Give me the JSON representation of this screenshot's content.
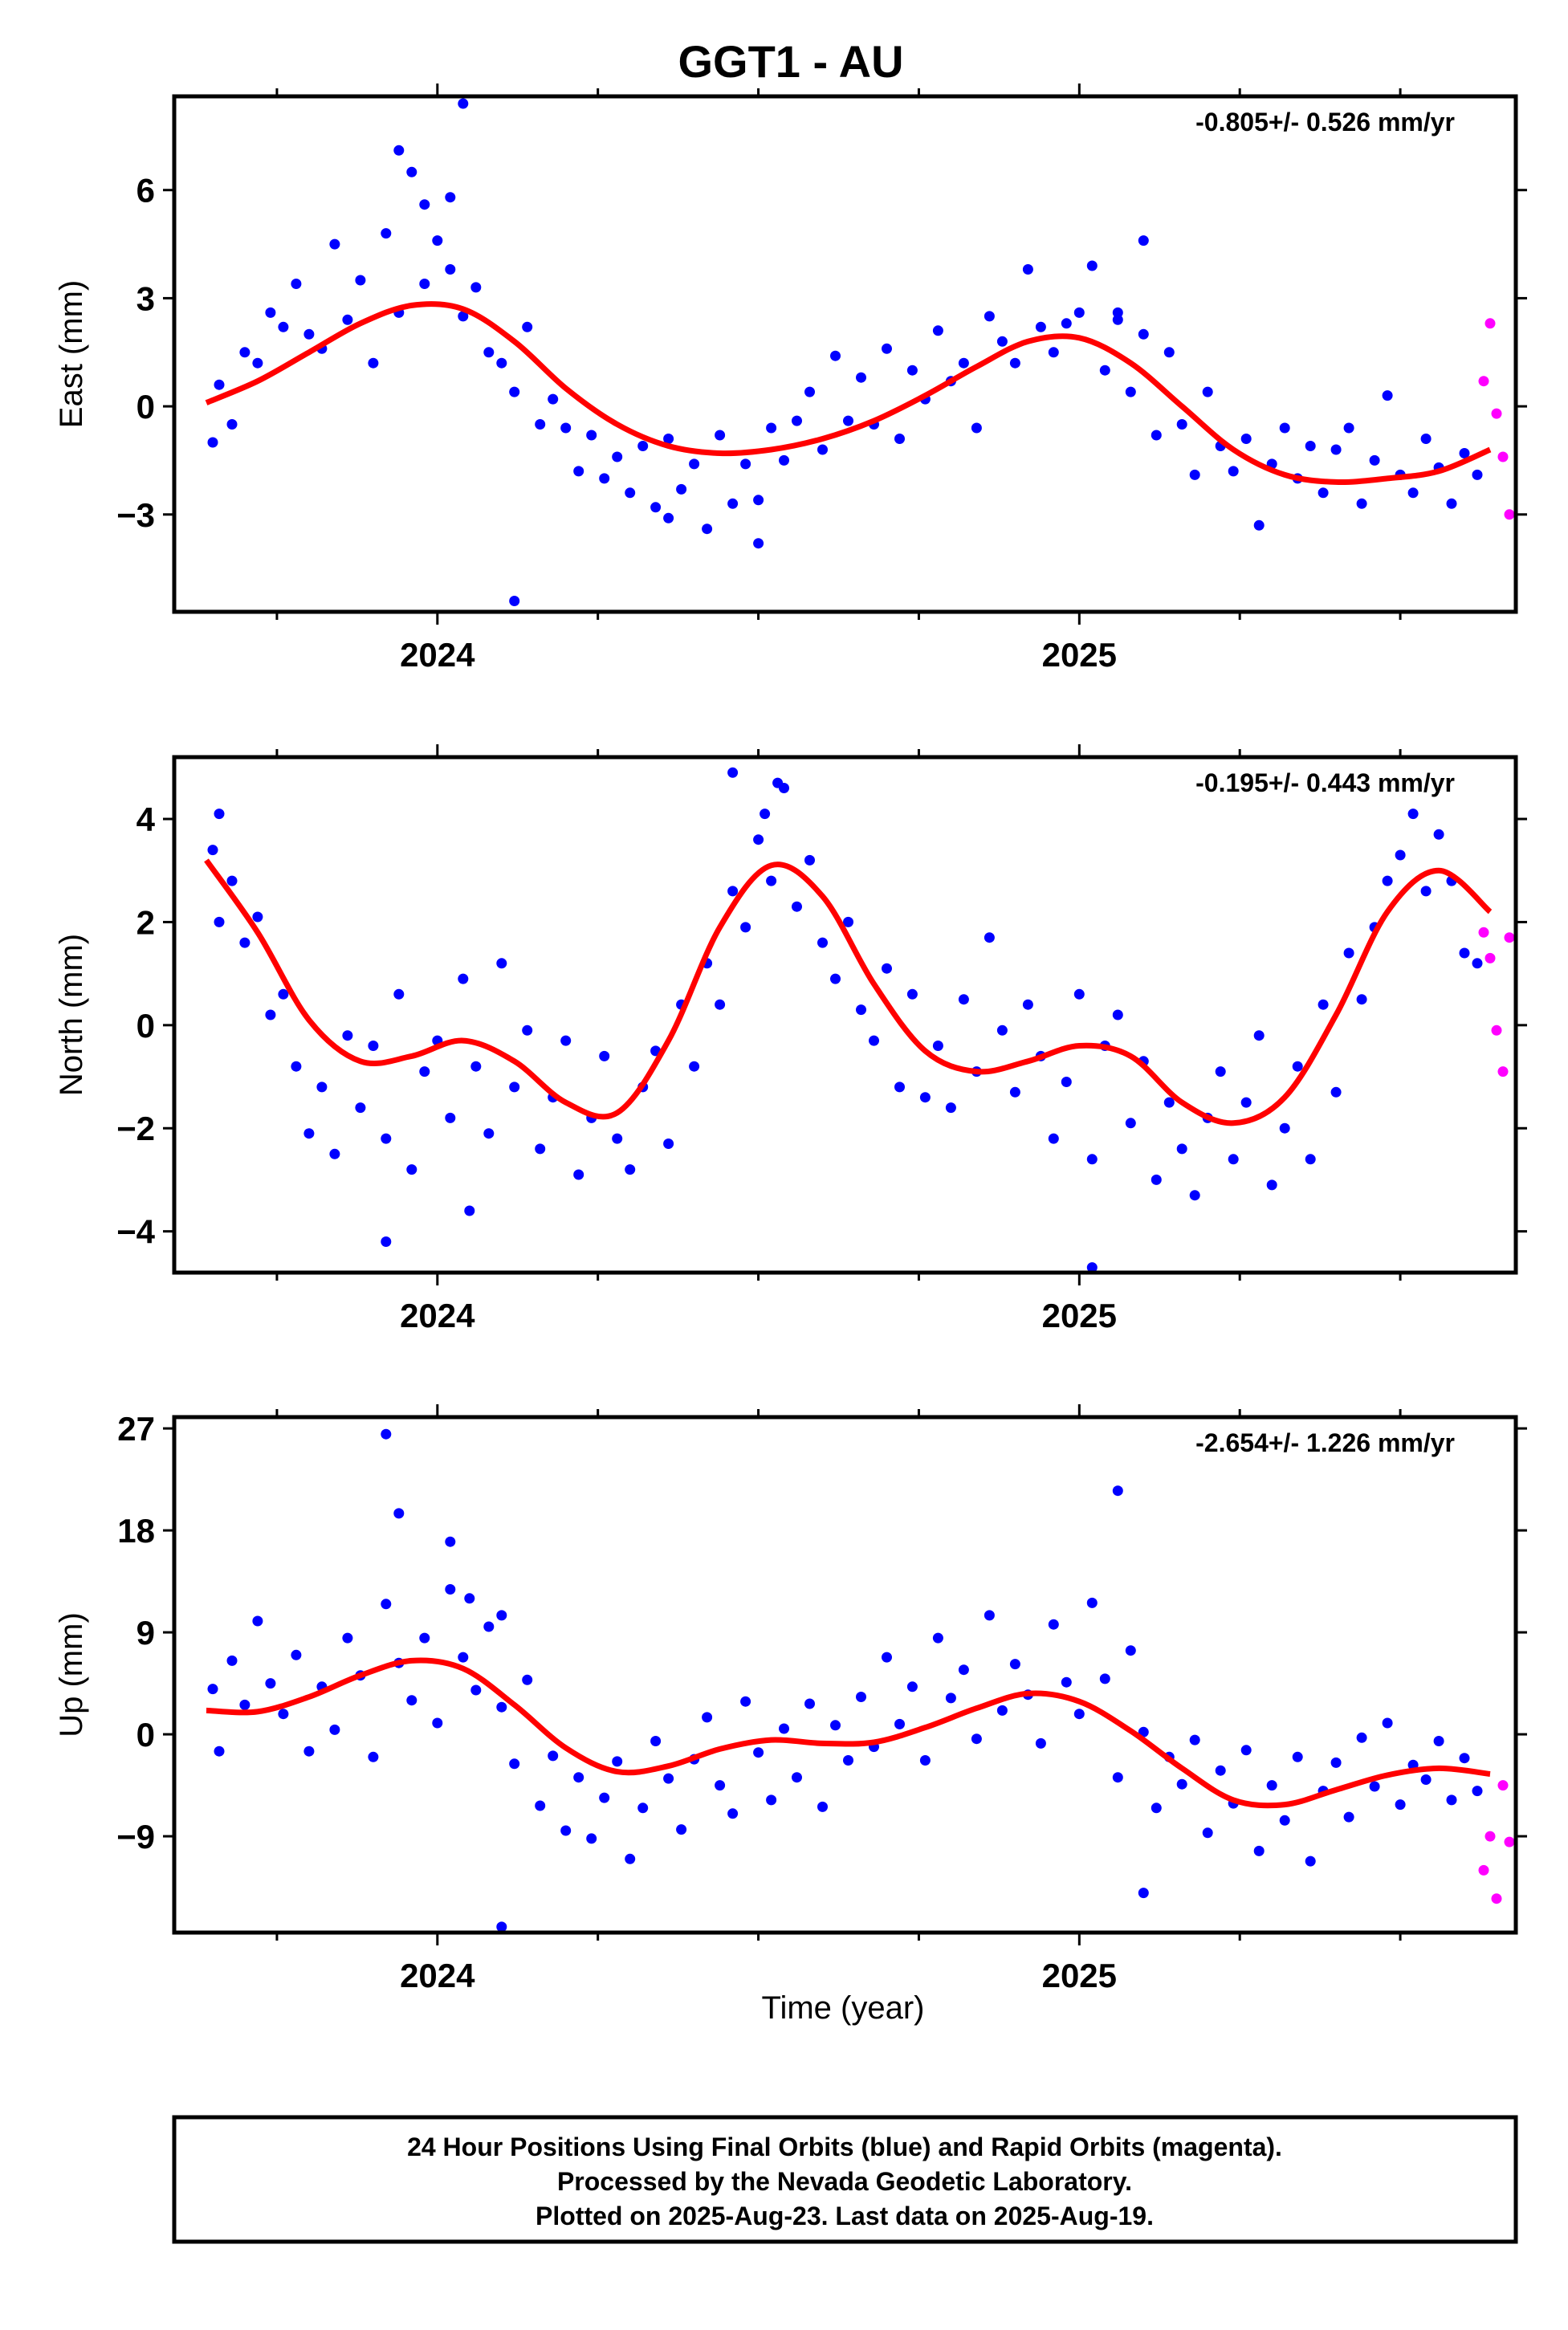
{
  "title": "GGT1 - AU",
  "footer": {
    "line1": "24 Hour Positions Using Final Orbits (blue) and Rapid Orbits (magenta).",
    "line2": "Processed by the Nevada Geodetic Laboratory.",
    "line3": "Plotted on 2025-Aug-23. Last data on 2025-Aug-19."
  },
  "colors": {
    "final": "#0000ff",
    "rapid": "#ff00ff",
    "fit": "#ff0000",
    "frame": "#000000"
  },
  "chart_data": [
    {
      "type": "scatter",
      "name": "east",
      "ylabel": "East (mm)",
      "xlabel": "",
      "rate": "-0.805+/- 0.526 mm/yr",
      "xlim": [
        2023.59,
        2025.68
      ],
      "ylim": [
        -5.7,
        8.6
      ],
      "yticks": [
        -3,
        0,
        3,
        6
      ],
      "ytick_labels": [
        "−3",
        "0",
        "3",
        "6"
      ],
      "xticks": [
        2024,
        2025
      ],
      "xtick_labels": [
        "2024",
        "2025"
      ],
      "fit_x": [
        2023.64,
        2023.72,
        2023.8,
        2023.88,
        2023.96,
        2024.04,
        2024.12,
        2024.2,
        2024.28,
        2024.36,
        2024.44,
        2024.52,
        2024.6,
        2024.68,
        2024.76,
        2024.84,
        2024.92,
        2025.0,
        2025.08,
        2025.16,
        2025.24,
        2025.32,
        2025.4,
        2025.48,
        2025.56,
        2025.64
      ],
      "fit_y": [
        0.1,
        0.7,
        1.5,
        2.3,
        2.8,
        2.7,
        1.8,
        0.5,
        -0.5,
        -1.1,
        -1.3,
        -1.2,
        -0.9,
        -0.4,
        0.3,
        1.1,
        1.8,
        1.9,
        1.2,
        0.0,
        -1.2,
        -1.9,
        -2.1,
        -2.0,
        -1.8,
        -1.2
      ],
      "final_x": [
        2023.65,
        2023.66,
        2023.68,
        2023.7,
        2023.72,
        2023.74,
        2023.76,
        2023.78,
        2023.8,
        2023.82,
        2023.84,
        2023.86,
        2023.88,
        2023.9,
        2023.92,
        2023.94,
        2023.96,
        2023.98,
        2024.0,
        2024.02,
        2024.04,
        2024.06,
        2024.08,
        2024.1,
        2024.12,
        2024.14,
        2024.16,
        2024.18,
        2024.2,
        2024.22,
        2024.24,
        2024.26,
        2024.28,
        2024.3,
        2024.32,
        2024.34,
        2024.36,
        2024.38,
        2024.4,
        2024.42,
        2024.44,
        2024.46,
        2024.48,
        2024.5,
        2024.52,
        2024.54,
        2024.56,
        2024.58,
        2024.6,
        2024.62,
        2024.64,
        2024.66,
        2024.68,
        2024.7,
        2024.72,
        2024.74,
        2024.76,
        2024.78,
        2024.8,
        2024.82,
        2024.84,
        2024.86,
        2024.88,
        2024.9,
        2024.92,
        2024.94,
        2024.96,
        2024.98,
        2025.0,
        2025.02,
        2025.04,
        2025.06,
        2025.08,
        2025.1,
        2025.12,
        2025.14,
        2025.16,
        2025.18,
        2025.2,
        2025.22,
        2025.24,
        2025.26,
        2025.28,
        2025.3,
        2025.32,
        2025.34,
        2025.36,
        2025.38,
        2025.4,
        2025.42,
        2025.44,
        2025.46,
        2025.48,
        2025.5,
        2025.52,
        2025.54,
        2025.56,
        2025.58,
        2025.6,
        2025.62,
        2023.94,
        2023.98,
        2024.02,
        2024.04,
        2025.06,
        2025.1,
        2024.12,
        2024.36,
        2024.5
      ],
      "final_y": [
        -1.0,
        0.6,
        -0.5,
        1.5,
        1.2,
        2.6,
        2.2,
        3.4,
        2.0,
        1.6,
        4.5,
        2.4,
        3.5,
        1.2,
        4.8,
        2.6,
        6.5,
        3.4,
        4.6,
        3.8,
        2.5,
        3.3,
        1.5,
        1.2,
        0.4,
        2.2,
        -0.5,
        0.2,
        -0.6,
        -1.8,
        -0.8,
        -2.0,
        -1.4,
        -2.4,
        -1.1,
        -2.8,
        -0.9,
        -2.3,
        -1.6,
        -3.4,
        -0.8,
        -2.7,
        -1.6,
        -3.8,
        -0.6,
        -1.5,
        -0.4,
        0.4,
        -1.2,
        1.4,
        -0.4,
        0.8,
        -0.5,
        1.6,
        -0.9,
        1.0,
        0.2,
        2.1,
        0.7,
        1.2,
        -0.6,
        2.5,
        1.8,
        1.2,
        3.8,
        2.2,
        1.5,
        2.3,
        2.6,
        3.9,
        1.0,
        2.4,
        0.4,
        2.0,
        -0.8,
        1.5,
        -0.5,
        -1.9,
        0.4,
        -1.1,
        -1.8,
        -0.9,
        -3.3,
        -1.6,
        -0.6,
        -2.0,
        -1.1,
        -2.4,
        -1.2,
        -0.6,
        -2.7,
        -1.5,
        0.3,
        -1.9,
        -2.4,
        -0.9,
        -1.7,
        -2.7,
        -1.3,
        -1.9,
        7.1,
        5.6,
        5.8,
        8.4,
        2.6,
        4.6,
        -5.4,
        -3.1,
        -2.6
      ],
      "rapid_x": [
        2025.63,
        2025.64,
        2025.65,
        2025.66,
        2025.67
      ],
      "rapid_y": [
        0.7,
        2.3,
        -0.2,
        -1.4,
        -3.0
      ]
    },
    {
      "type": "scatter",
      "name": "north",
      "ylabel": "North (mm)",
      "xlabel": "",
      "rate": "-0.195+/- 0.443 mm/yr",
      "xlim": [
        2023.59,
        2025.68
      ],
      "ylim": [
        -4.8,
        5.2
      ],
      "yticks": [
        -4,
        -2,
        0,
        2,
        4
      ],
      "ytick_labels": [
        "−4",
        "−2",
        "0",
        "2",
        "4"
      ],
      "xticks": [
        2024,
        2025
      ],
      "xtick_labels": [
        "2024",
        "2025"
      ],
      "fit_x": [
        2023.64,
        2023.72,
        2023.8,
        2023.88,
        2023.96,
        2024.04,
        2024.12,
        2024.2,
        2024.28,
        2024.36,
        2024.44,
        2024.52,
        2024.6,
        2024.68,
        2024.76,
        2024.84,
        2024.92,
        2025.0,
        2025.08,
        2025.16,
        2025.24,
        2025.32,
        2025.4,
        2025.48,
        2025.56,
        2025.64
      ],
      "fit_y": [
        3.2,
        1.8,
        0.1,
        -0.7,
        -0.6,
        -0.3,
        -0.7,
        -1.5,
        -1.7,
        -0.3,
        1.9,
        3.1,
        2.5,
        0.8,
        -0.5,
        -0.9,
        -0.7,
        -0.4,
        -0.6,
        -1.5,
        -1.9,
        -1.4,
        0.2,
        2.2,
        3.0,
        2.2
      ],
      "final_x": [
        2023.65,
        2023.66,
        2023.68,
        2023.7,
        2023.72,
        2023.74,
        2023.76,
        2023.78,
        2023.8,
        2023.82,
        2023.84,
        2023.86,
        2023.88,
        2023.9,
        2023.92,
        2023.94,
        2023.96,
        2023.98,
        2024.0,
        2024.02,
        2024.04,
        2024.06,
        2024.08,
        2024.1,
        2024.12,
        2024.14,
        2024.16,
        2024.18,
        2024.2,
        2024.22,
        2024.24,
        2024.26,
        2024.28,
        2024.3,
        2024.32,
        2024.34,
        2024.36,
        2024.38,
        2024.4,
        2024.42,
        2024.44,
        2024.46,
        2024.48,
        2024.5,
        2024.52,
        2024.54,
        2024.56,
        2024.58,
        2024.6,
        2024.62,
        2024.64,
        2024.66,
        2024.68,
        2024.7,
        2024.72,
        2024.74,
        2024.76,
        2024.78,
        2024.8,
        2024.82,
        2024.84,
        2024.86,
        2024.88,
        2024.9,
        2024.92,
        2024.94,
        2024.96,
        2024.98,
        2025.0,
        2025.02,
        2025.04,
        2025.06,
        2025.08,
        2025.1,
        2025.12,
        2025.14,
        2025.16,
        2025.18,
        2025.2,
        2025.22,
        2025.24,
        2025.26,
        2025.28,
        2025.3,
        2025.32,
        2025.34,
        2025.36,
        2025.38,
        2025.4,
        2025.42,
        2025.44,
        2025.46,
        2025.48,
        2025.5,
        2025.52,
        2025.54,
        2025.56,
        2025.58,
        2025.6,
        2025.62,
        2023.66,
        2023.92,
        2024.05,
        2024.46,
        2024.51,
        2024.53,
        2025.02
      ],
      "final_y": [
        3.4,
        2.0,
        2.8,
        1.6,
        2.1,
        0.2,
        0.6,
        -0.8,
        -2.1,
        -1.2,
        -2.5,
        -0.2,
        -1.6,
        -0.4,
        -2.2,
        0.6,
        -2.8,
        -0.9,
        -0.3,
        -1.8,
        0.9,
        -0.8,
        -2.1,
        1.2,
        -1.2,
        -0.1,
        -2.4,
        -1.4,
        -0.3,
        -2.9,
        -1.8,
        -0.6,
        -2.2,
        -2.8,
        -1.2,
        -0.5,
        -2.3,
        0.4,
        -0.8,
        1.2,
        0.4,
        2.6,
        1.9,
        3.6,
        2.8,
        4.6,
        2.3,
        3.2,
        1.6,
        0.9,
        2.0,
        0.3,
        -0.3,
        1.1,
        -1.2,
        0.6,
        -1.4,
        -0.4,
        -1.6,
        0.5,
        -0.9,
        1.7,
        -0.1,
        -1.3,
        0.4,
        -0.6,
        -2.2,
        -1.1,
        0.6,
        -2.6,
        -0.4,
        0.2,
        -1.9,
        -0.7,
        -3.0,
        -1.5,
        -2.4,
        -3.3,
        -1.8,
        -0.9,
        -2.6,
        -1.5,
        -0.2,
        -3.1,
        -2.0,
        -0.8,
        -2.6,
        0.4,
        -1.3,
        1.4,
        0.5,
        1.9,
        2.8,
        3.3,
        4.1,
        2.6,
        3.7,
        2.8,
        1.4,
        1.2,
        4.1,
        -4.2,
        -3.6,
        4.9,
        4.1,
        4.7,
        -4.7
      ],
      "rapid_x": [
        2025.63,
        2025.64,
        2025.65,
        2025.66,
        2025.67
      ],
      "rapid_y": [
        1.8,
        1.3,
        -0.1,
        -0.9,
        1.7
      ]
    },
    {
      "type": "scatter",
      "name": "up",
      "ylabel": "Up (mm)",
      "xlabel": "Time (year)",
      "rate": "-2.654+/- 1.226 mm/yr",
      "xlim": [
        2023.59,
        2025.68
      ],
      "ylim": [
        -17.5,
        28.0
      ],
      "yticks": [
        -9,
        0,
        9,
        18,
        27
      ],
      "ytick_labels": [
        "−9",
        "0",
        "9",
        "18",
        "27"
      ],
      "xticks": [
        2024,
        2025
      ],
      "xtick_labels": [
        "2024",
        "2025"
      ],
      "fit_x": [
        2023.64,
        2023.72,
        2023.8,
        2023.88,
        2023.96,
        2024.04,
        2024.12,
        2024.2,
        2024.28,
        2024.36,
        2024.44,
        2024.52,
        2024.6,
        2024.68,
        2024.76,
        2024.84,
        2024.92,
        2025.0,
        2025.08,
        2025.16,
        2025.24,
        2025.32,
        2025.4,
        2025.48,
        2025.56,
        2025.64
      ],
      "fit_y": [
        2.1,
        2.0,
        3.3,
        5.2,
        6.5,
        5.8,
        2.6,
        -1.2,
        -3.3,
        -2.8,
        -1.3,
        -0.5,
        -0.8,
        -0.7,
        0.6,
        2.3,
        3.6,
        2.9,
        0.3,
        -3.0,
        -5.8,
        -6.2,
        -4.9,
        -3.6,
        -3.0,
        -3.5
      ],
      "final_x": [
        2023.65,
        2023.66,
        2023.68,
        2023.7,
        2023.72,
        2023.74,
        2023.76,
        2023.78,
        2023.8,
        2023.82,
        2023.84,
        2023.86,
        2023.88,
        2023.9,
        2023.92,
        2023.94,
        2023.96,
        2023.98,
        2024.0,
        2024.02,
        2024.04,
        2024.06,
        2024.08,
        2024.1,
        2024.12,
        2024.14,
        2024.16,
        2024.18,
        2024.2,
        2024.22,
        2024.24,
        2024.26,
        2024.28,
        2024.3,
        2024.32,
        2024.34,
        2024.36,
        2024.38,
        2024.4,
        2024.42,
        2024.44,
        2024.46,
        2024.48,
        2024.5,
        2024.52,
        2024.54,
        2024.56,
        2024.58,
        2024.6,
        2024.62,
        2024.64,
        2024.66,
        2024.68,
        2024.7,
        2024.72,
        2024.74,
        2024.76,
        2024.78,
        2024.8,
        2024.82,
        2024.84,
        2024.86,
        2024.88,
        2024.9,
        2024.92,
        2024.94,
        2024.96,
        2024.98,
        2025.0,
        2025.02,
        2025.04,
        2025.06,
        2025.08,
        2025.1,
        2025.12,
        2025.14,
        2025.16,
        2025.18,
        2025.2,
        2025.22,
        2025.24,
        2025.26,
        2025.28,
        2025.3,
        2025.32,
        2025.34,
        2025.36,
        2025.38,
        2025.4,
        2025.42,
        2025.44,
        2025.46,
        2025.48,
        2025.5,
        2025.52,
        2025.54,
        2025.56,
        2025.58,
        2025.6,
        2025.62,
        2023.94,
        2023.92,
        2024.02,
        2024.05,
        2024.1,
        2025.06,
        2025.1,
        2024.1
      ],
      "final_y": [
        4.0,
        -1.5,
        6.5,
        2.6,
        10.0,
        4.5,
        1.8,
        7.0,
        -1.5,
        4.2,
        0.4,
        8.5,
        5.2,
        -2.0,
        11.5,
        6.3,
        3.0,
        8.5,
        1.0,
        12.8,
        6.8,
        3.9,
        9.5,
        2.4,
        -2.6,
        4.8,
        -6.3,
        -1.9,
        -8.5,
        -3.8,
        -9.2,
        -5.6,
        -2.4,
        -11.0,
        -6.5,
        -0.6,
        -3.9,
        -8.4,
        -2.2,
        1.5,
        -4.5,
        -7.0,
        2.9,
        -1.6,
        -5.8,
        0.5,
        -3.8,
        2.7,
        -6.4,
        0.8,
        -2.3,
        3.3,
        -1.1,
        6.8,
        0.9,
        4.2,
        -2.3,
        8.5,
        3.2,
        5.7,
        -0.4,
        10.5,
        2.1,
        6.2,
        3.5,
        -0.8,
        9.7,
        4.6,
        1.8,
        11.6,
        4.9,
        -3.8,
        7.4,
        0.2,
        -6.5,
        -2.0,
        -4.4,
        -0.5,
        -8.7,
        -3.2,
        -6.1,
        -1.4,
        -10.3,
        -4.5,
        -7.6,
        -2.0,
        -11.2,
        -5.0,
        -2.5,
        -7.3,
        -0.3,
        -4.6,
        1.0,
        -6.2,
        -2.7,
        -4.0,
        -0.6,
        -5.8,
        -2.1,
        -5.0,
        19.5,
        26.5,
        17.0,
        12.0,
        -17.0,
        21.5,
        -14.0,
        10.5
      ],
      "rapid_x": [
        2025.63,
        2025.64,
        2025.65,
        2025.66,
        2025.67
      ],
      "rapid_y": [
        -12.0,
        -9.0,
        -14.5,
        -4.5,
        -9.5
      ]
    }
  ]
}
